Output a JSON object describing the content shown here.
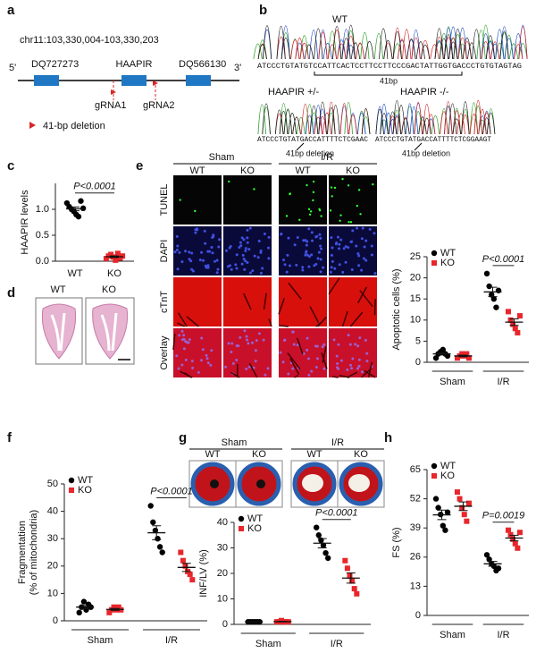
{
  "panel_labels": [
    "a",
    "b",
    "c",
    "d",
    "e",
    "f",
    "g",
    "h"
  ],
  "gene_map": {
    "locus": "chr11:103,330,004-103,330,203",
    "five_prime": "5'",
    "three_prime": "3'",
    "genes": [
      "DQ727273",
      "HAAPIR",
      "DQ566130"
    ],
    "guides": [
      "gRNA1",
      "gRNA2"
    ],
    "legend": "41-bp deletion"
  },
  "sequencing": {
    "wt": {
      "label": "WT",
      "sequence": "ATCCCTGTATGTCCATTCACTCCTTCCTTCCCGACTATTGGTGACCCTGTGTAGTAG",
      "note": "41bp"
    },
    "het": {
      "label": "HAAPIR +/-",
      "sequence": "ATCCCTGTATGACCATTTTCTCGAAC",
      "note": "41bp deletion"
    },
    "hom": {
      "label": "HAAPIR -/-",
      "sequence": "ATCCCTGTATGACCATTTTCTCGGAAGT",
      "note": "41bp deletion"
    }
  },
  "heart_sections": {
    "labels": [
      "WT",
      "KO"
    ]
  },
  "staining": {
    "groups": [
      "Sham",
      "I/R"
    ],
    "genotypes": [
      "WT",
      "KO",
      "WT",
      "KO"
    ],
    "stains": [
      "TUNEL",
      "DAPI",
      "cTnT",
      "Overlay"
    ]
  },
  "ttc": {
    "groups": [
      "Sham",
      "I/R"
    ],
    "genotypes": [
      "WT",
      "KO",
      "WT",
      "KO"
    ]
  },
  "chart_data": [
    {
      "type": "strip",
      "ylabel": "HAAPIR levels",
      "categories": [
        "WT",
        "KO"
      ],
      "values": [
        [
          1.12,
          1.05,
          1.0,
          0.96,
          0.9,
          0.86,
          1.16,
          1.02
        ],
        [
          0.05,
          0.1,
          0.13,
          0.08,
          0.02,
          0.15,
          0.06,
          0.1
        ]
      ],
      "colors": [
        "#000000",
        "#e8262b"
      ],
      "markers": [
        "circle",
        "square"
      ],
      "ylim": [
        0,
        1.5
      ],
      "yticks": [
        {
          "value": 0,
          "label": "0.0"
        },
        {
          "value": 0.5,
          "label": "0.5"
        },
        {
          "value": 1,
          "label": "1.0"
        }
      ],
      "annotation": "P<0.0001"
    },
    {
      "type": "strip",
      "ylabel": "Apoptotic cells (%)",
      "categories": [
        "Sham",
        "I/R"
      ],
      "series": [
        {
          "name": "WT",
          "color": "#000000",
          "marker": "circle",
          "values": [
            [
              1,
              2,
              2.5,
              3,
              2,
              1.5
            ],
            [
              21,
              18,
              16,
              15,
              13,
              17
            ]
          ]
        },
        {
          "name": "KO",
          "color": "#e8262b",
          "marker": "square",
          "values": [
            [
              1,
              1.5,
              2,
              1.5,
              2,
              1
            ],
            [
              12,
              10,
              9,
              8,
              7,
              11
            ]
          ]
        }
      ],
      "ylim": [
        0,
        25
      ],
      "yticks": [
        0,
        5,
        10,
        15,
        20,
        25
      ],
      "annotation": "P<0.0001",
      "legend": "top-left"
    },
    {
      "type": "strip",
      "ylabel": [
        "Fragmentation",
        "(% of mitochondria)"
      ],
      "categories": [
        "Sham",
        "I/R"
      ],
      "series": [
        {
          "name": "WT",
          "color": "#000000",
          "marker": "circle",
          "values": [
            [
              3,
              5,
              7,
              4,
              6,
              5
            ],
            [
              42,
              36,
              33,
              30,
              27,
              25
            ]
          ]
        },
        {
          "name": "KO",
          "color": "#e8262b",
          "marker": "square",
          "values": [
            [
              3,
              4,
              5,
              4,
              5,
              4
            ],
            [
              25,
              22,
              20,
              18,
              17,
              15
            ]
          ]
        }
      ],
      "ylim": [
        0,
        50
      ],
      "yticks": [
        0,
        10,
        20,
        30,
        40,
        50
      ],
      "annotation": "P<0.0001",
      "legend": "top-left"
    },
    {
      "type": "strip",
      "ylabel": "INF/LV (%)",
      "categories": [
        "Sham",
        "I/R"
      ],
      "series": [
        {
          "name": "WT",
          "color": "#000000",
          "marker": "circle",
          "values": [
            [
              1,
              1,
              1,
              1,
              1,
              1
            ],
            [
              38,
              35,
              33,
              31,
              28,
              26
            ]
          ]
        },
        {
          "name": "KO",
          "color": "#e8262b",
          "marker": "square",
          "values": [
            [
              1,
              1,
              1.5,
              1,
              1,
              1
            ],
            [
              25,
              22,
              19,
              17,
              14,
              12
            ]
          ]
        }
      ],
      "ylim": [
        0,
        40
      ],
      "yticks": [
        0,
        10,
        20,
        30,
        40
      ],
      "annotation": "P<0.0001",
      "legend": "top-left"
    },
    {
      "type": "strip",
      "ylabel": "FS (%)",
      "categories": [
        "Sham",
        "I/R"
      ],
      "series": [
        {
          "name": "WT",
          "color": "#000000",
          "marker": "circle",
          "values": [
            [
              52,
              48,
              45,
              40,
              38,
              46
            ],
            [
              27,
              25,
              23,
              22,
              20,
              21
            ]
          ]
        },
        {
          "name": "KO",
          "color": "#e8262b",
          "marker": "square",
          "values": [
            [
              55,
              52,
              48,
              45,
              42,
              50
            ],
            [
              38,
              36,
              34,
              32,
              30,
              37
            ]
          ]
        }
      ],
      "ylim": [
        0,
        65
      ],
      "yticks": [
        0,
        13,
        26,
        39,
        52,
        65
      ],
      "annotation": "P=0.0019",
      "legend": "top-left"
    }
  ]
}
